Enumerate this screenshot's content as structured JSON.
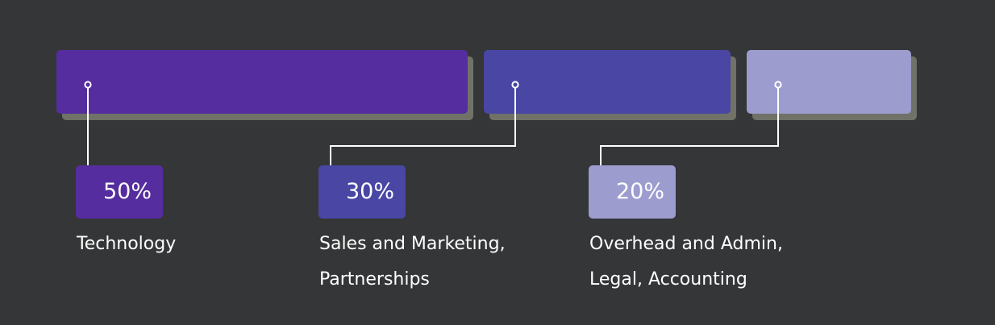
{
  "chart_data": {
    "type": "bar",
    "orientation": "horizontal-stacked",
    "unit": "%",
    "segments": [
      {
        "value": 50,
        "value_label": "50%",
        "label_lines": [
          "Technology"
        ],
        "color": "#552d9e"
      },
      {
        "value": 30,
        "value_label": "30%",
        "label_lines": [
          "Sales and Marketing,",
          "Partnerships"
        ],
        "color": "#4a46a4"
      },
      {
        "value": 20,
        "value_label": "20%",
        "label_lines": [
          "Overhead and Admin,",
          "Legal, Accounting"
        ],
        "color": "#9c9ccf"
      }
    ]
  },
  "colors": {
    "background": "#343637",
    "bar_shadow": "#707268",
    "connector": "#ffffff",
    "text": "#ffffff"
  }
}
